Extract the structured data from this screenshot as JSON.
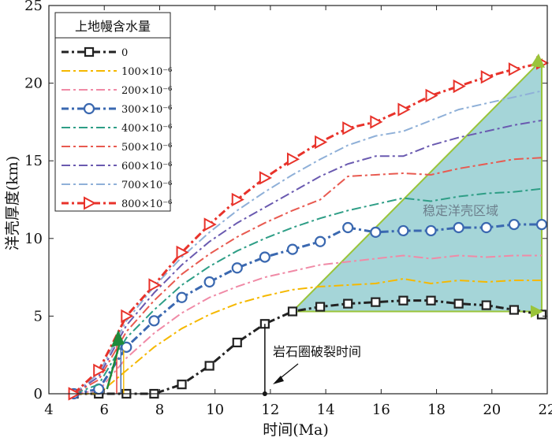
{
  "chart_data": {
    "type": "line",
    "xlabel": "时间(Ma)",
    "ylabel": "洋壳厚度(km)",
    "xlim": [
      4,
      22
    ],
    "ylim": [
      0,
      25
    ],
    "xticks": [
      4,
      6,
      8,
      10,
      12,
      14,
      16,
      18,
      20,
      22
    ],
    "yticks": [
      0,
      5,
      10,
      15,
      20,
      25
    ],
    "grid": false,
    "legend": {
      "title": "上地幔含水量",
      "placement": "top-left",
      "labels": [
        "0",
        "100×10⁻⁶",
        "200×10⁻⁶",
        "300×10⁻⁶",
        "400×10⁻⁶",
        "500×10⁻⁶",
        "600×10⁻⁶",
        "700×10⁻⁶",
        "800×10⁻⁶"
      ]
    },
    "annotations": {
      "breakup": "岩石圈破裂时间",
      "breakup_time": 11.8,
      "stable_region": "稳定洋壳区域"
    },
    "stable_region_polygon": [
      [
        12.8,
        5.3
      ],
      [
        21.8,
        21.5
      ],
      [
        21.8,
        5.3
      ]
    ],
    "series": [
      {
        "name": "0",
        "color": "#222222",
        "marker": "square",
        "x": [
          4.9,
          5.8,
          6.8,
          7.8,
          8.8,
          9.8,
          10.8,
          11.8,
          12.8,
          13.8,
          14.8,
          15.8,
          16.8,
          17.8,
          18.8,
          19.8,
          20.8,
          21.8
        ],
        "y": [
          0,
          0,
          0,
          0,
          0.6,
          1.8,
          3.3,
          4.5,
          5.3,
          5.6,
          5.8,
          5.9,
          6.0,
          6.0,
          5.8,
          5.7,
          5.4,
          5.1
        ]
      },
      {
        "name": "100×10⁻⁶",
        "color": "#f5b800",
        "marker": "none",
        "x": [
          4.9,
          5.8,
          6.8,
          7.8,
          8.8,
          9.8,
          10.8,
          11.8,
          12.8,
          13.8,
          14.8,
          15.8,
          16.8,
          17.8,
          18.8,
          19.8,
          20.8,
          21.8
        ],
        "y": [
          0,
          0,
          1.5,
          3.0,
          4.2,
          5.1,
          5.8,
          6.3,
          6.7,
          6.9,
          7.0,
          7.1,
          7.4,
          7.1,
          7.3,
          7.2,
          7.3,
          7.3
        ]
      },
      {
        "name": "200×10⁻⁶",
        "color": "#f08aa6",
        "marker": "none",
        "x": [
          4.9,
          5.8,
          6.8,
          7.8,
          8.8,
          9.8,
          10.8,
          11.8,
          12.8,
          13.8,
          14.8,
          15.8,
          16.8,
          17.8,
          18.8,
          19.8,
          20.8,
          21.8
        ],
        "y": [
          0,
          0.2,
          2.3,
          3.9,
          5.2,
          6.2,
          6.9,
          7.5,
          7.9,
          8.3,
          8.5,
          8.7,
          8.9,
          8.7,
          8.9,
          8.8,
          8.9,
          8.9
        ]
      },
      {
        "name": "300×10⁻⁶",
        "color": "#3a68b0",
        "marker": "circle",
        "x": [
          4.9,
          5.8,
          6.8,
          7.8,
          8.8,
          9.8,
          10.8,
          11.8,
          12.8,
          13.8,
          14.8,
          15.8,
          16.8,
          17.8,
          18.8,
          19.8,
          20.8,
          21.8
        ],
        "y": [
          0,
          0.3,
          3.0,
          4.7,
          6.2,
          7.2,
          8.1,
          8.8,
          9.3,
          9.8,
          10.7,
          10.4,
          10.5,
          10.5,
          10.7,
          10.7,
          10.9,
          10.9
        ]
      },
      {
        "name": "400×10⁻⁶",
        "color": "#2e9e86",
        "marker": "none",
        "x": [
          4.9,
          5.8,
          6.8,
          7.8,
          8.8,
          9.8,
          10.8,
          11.8,
          12.8,
          13.8,
          14.8,
          15.8,
          16.8,
          17.8,
          18.8,
          19.8,
          20.8,
          21.8
        ],
        "y": [
          0,
          0.6,
          3.6,
          5.4,
          7.0,
          8.2,
          9.2,
          10.0,
          10.7,
          11.3,
          11.8,
          12.2,
          12.6,
          12.4,
          12.7,
          12.9,
          13.0,
          13.2
        ]
      },
      {
        "name": "500×10⁻⁶",
        "color": "#e85a50",
        "marker": "none",
        "x": [
          4.9,
          5.8,
          6.8,
          7.8,
          8.8,
          9.8,
          10.8,
          11.8,
          12.8,
          13.8,
          14.8,
          15.8,
          16.8,
          17.8,
          18.8,
          19.8,
          20.8,
          21.8
        ],
        "y": [
          0,
          0.9,
          4.0,
          6.0,
          7.7,
          9.0,
          10.1,
          11.0,
          11.8,
          12.5,
          14.0,
          14.1,
          14.2,
          14.1,
          14.5,
          14.8,
          15.1,
          15.2
        ]
      },
      {
        "name": "600×10⁻⁶",
        "color": "#6a5ab0",
        "marker": "none",
        "x": [
          4.9,
          5.8,
          6.8,
          7.8,
          8.8,
          9.8,
          10.8,
          11.8,
          12.8,
          13.8,
          14.8,
          15.8,
          16.8,
          17.8,
          18.8,
          19.8,
          20.8,
          21.8
        ],
        "y": [
          0,
          1.1,
          4.4,
          6.5,
          8.3,
          9.8,
          11.0,
          12.0,
          13.0,
          14.0,
          14.8,
          15.3,
          15.3,
          16.0,
          16.5,
          16.9,
          17.3,
          17.6
        ]
      },
      {
        "name": "700×10⁻⁶",
        "color": "#8fb0d8",
        "marker": "none",
        "x": [
          4.9,
          5.8,
          6.8,
          7.8,
          8.8,
          9.8,
          10.8,
          11.8,
          12.8,
          13.8,
          14.8,
          15.8,
          16.8,
          17.8,
          18.8,
          19.8,
          20.8,
          21.8
        ],
        "y": [
          0,
          1.3,
          4.7,
          6.9,
          8.8,
          10.4,
          11.8,
          13.0,
          14.1,
          15.1,
          16.0,
          16.6,
          16.9,
          17.6,
          18.3,
          18.7,
          19.1,
          19.5
        ]
      },
      {
        "name": "800×10⁻⁶",
        "color": "#e8322a",
        "marker": "triangle-right",
        "x": [
          4.9,
          5.8,
          6.8,
          7.8,
          8.8,
          9.8,
          10.8,
          11.8,
          12.8,
          13.8,
          14.8,
          15.8,
          16.8,
          17.8,
          18.8,
          19.8,
          20.8,
          21.8
        ],
        "y": [
          0,
          1.5,
          5.0,
          7.0,
          9.1,
          10.9,
          12.5,
          13.9,
          15.1,
          16.2,
          17.1,
          17.5,
          18.3,
          19.2,
          19.8,
          20.4,
          20.9,
          21.3
        ]
      }
    ]
  }
}
